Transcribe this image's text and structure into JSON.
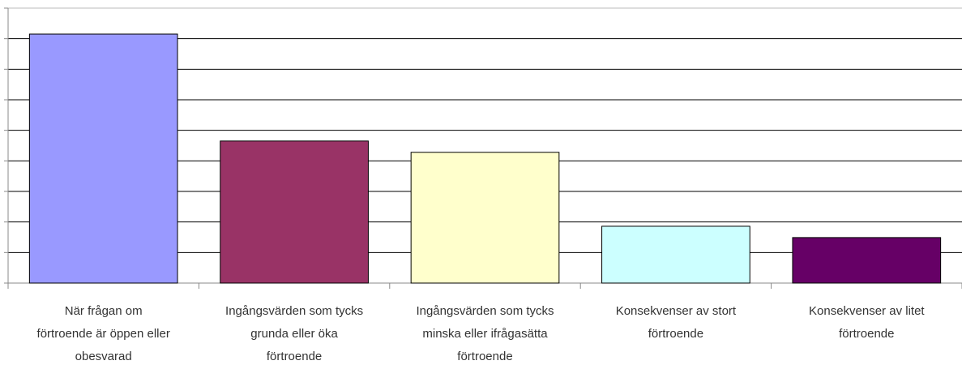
{
  "chart_data": {
    "type": "bar",
    "categories": [
      "När frågan om\nförtroende är öppen eller\nobesvarad",
      "Ingångsvärden som tycks\ngrunda eller öka\nförtroende",
      "Ingångsvärden som tycks\nminska eller ifrågasätta\nförtroende",
      "Konsekvenser av stort\nförtroende",
      "Konsekvenser av litet\nförtroende"
    ],
    "values": [
      8.15,
      4.65,
      4.28,
      1.86,
      1.49
    ],
    "colors": [
      "#9999ff",
      "#993366",
      "#ffffcc",
      "#ccffff",
      "#660066"
    ],
    "ylim": [
      0,
      9
    ],
    "yticks": [
      0,
      1,
      2,
      3,
      4,
      5,
      6,
      7,
      8,
      9
    ],
    "grid": true
  }
}
